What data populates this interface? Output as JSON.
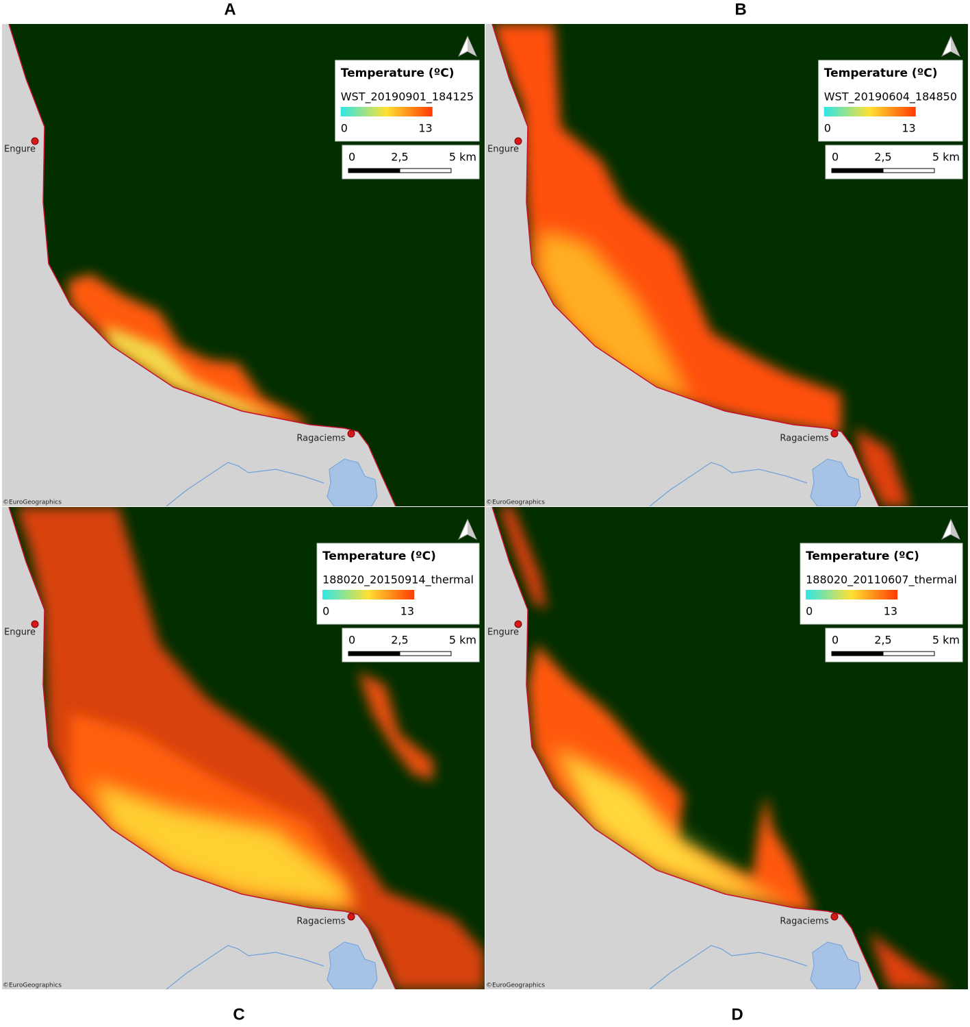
{
  "panels": [
    {
      "label": "A",
      "legend_title": "Temperature (ºC)",
      "layer": "WST_20190901_184125",
      "legend_min": 0,
      "legend_max": 13,
      "scale_labels": [
        "0",
        "2,5",
        "5 km"
      ],
      "places": [
        "Engure",
        "Ragaciems"
      ],
      "credit": "©EuroGeographics"
    },
    {
      "label": "B",
      "legend_title": "Temperature (ºC)",
      "layer": "WST_20190604_184850",
      "legend_min": 0,
      "legend_max": 13,
      "scale_labels": [
        "0",
        "2,5",
        "5 km"
      ],
      "places": [
        "Engure",
        "Ragaciems"
      ],
      "credit": "©EuroGeographics"
    },
    {
      "label": "C",
      "legend_title": "Temperature (ºC)",
      "layer": "188020_20150914_thermal",
      "legend_min": 0,
      "legend_max": 13,
      "scale_labels": [
        "0",
        "2,5",
        "5 km"
      ],
      "places": [
        "Engure",
        "Ragaciems"
      ],
      "credit": "©EuroGeographics"
    },
    {
      "label": "D",
      "legend_title": "Temperature (ºC)",
      "layer": "188020_20110607_thermal",
      "legend_min": 0,
      "legend_max": 13,
      "scale_labels": [
        "0",
        "2,5",
        "5 km"
      ],
      "places": [
        "Engure",
        "Ragaciems"
      ],
      "credit": "©EuroGeographics"
    }
  ]
}
